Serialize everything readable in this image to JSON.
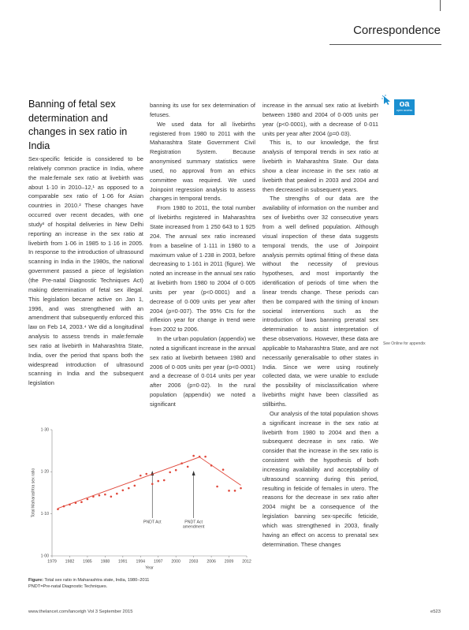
{
  "header": {
    "section": "Correspondence"
  },
  "article": {
    "title": "Banning of fetal sex determination and changes in sex ratio in India",
    "columns": [
      [
        "Sex-specific feticide is considered to be relatively common practice in India, where the male:female sex ratio at livebirth was about 1·10 in 2010–12,¹ as opposed to a comparable sex ratio of 1·06 for Asian countries in 2010.² These changes have occurred over recent decades, with one study³ of hospital deliveries in New Delhi reporting an increase in the sex ratio at livebirth from 1·06 in 1985 to 1·16 in 2005. In response to the introduction of ultrasound scanning in India in the 1980s, the national government passed a piece of legislation (the Pre-natal Diagnostic Techniques Act) making determination of fetal sex illegal. This legislation became active on Jan 1, 1996, and was strengthened with an amendment that subsequently enforced this law on Feb 14, 2003.⁴ We did a longitudinal analysis to assess trends in male:female sex ratio at livebirth in Maharashtra State, India, over the period that spans both the widespread introduction of ultrasound scanning in India and the subsequent legislation"
      ],
      [
        "banning its use for sex determination of fetuses.",
        "We used data for all livebirths registered from 1980 to 2011 with the Maharashtra State Government Civil Registration System. Because anonymised summary statistics were used, no approval from an ethics committee was required. We used Joinpoint regression analysis to assess changes in temporal trends.",
        "From 1980 to 2011, the total number of livebirths registered in Maharashtra State increased from 1 250 643 to 1 925 204. The annual sex ratio increased from a baseline of 1·111 in 1980 to a maximum value of 1·238 in 2003, before decreasing to 1·161 in 2011 (figure). We noted an increase in the annual sex ratio at livebirth from 1980 to 2004 of 0·005 units per year (p<0·0001) and a decrease of 0·009 units per year after 2004 (p=0·007). The 95% CIs for the inflexion year for change in trend were from 2002 to 2006.",
        "In the urban population (appendix) we noted a significant increase in the annual sex ratio at livebirth between 1980 and 2006 of 0·005 units per year (p<0·0001) and a decrease of 0·014 units per year after 2006 (p=0·02). In the rural population (appendix) we noted a significant"
      ],
      [
        "increase in the annual sex ratio at livebirth between 1980 and 2004 of 0·005 units per year (p<0·0001), with a decrease of 0·011 units per year after 2004 (p=0·03).",
        "This is, to our knowledge, the first analysis of temporal trends in sex ratio at livebirth in Maharashtra State. Our data show a clear increase in the sex ratio at livebirth that peaked in 2003 and 2004 and then decreased in subsequent years.",
        "The strengths of our data are the availability of information on the number and sex of livebirths over 32 consecutive years from a well defined population. Although visual inspection of these data suggests temporal trends, the use of Joinpoint analysis permits optimal fitting of these data without the necessity of previous hypotheses, and most importantly the identification of periods of time when the linear trends change. These periods can then be compared with the timing of known societal interventions such as the introduction of laws banning prenatal sex determination to assist interpretation of these observations. However, these data are applicable to Maharashtra State, and are not necessarily generalisable to other states in India. Since we were using routinely collected data, we were unable to exclude the possibility of misclassification where livebirths might have been classified as stillbirths.",
        "Our analysis of the total population shows a significant increase in the sex ratio at livebirth from 1980 to 2004 and then a subsequent decrease in sex ratio. We consider that the increase in the sex ratio is consistent with the hypothesis of both increasing availability and acceptability of ultrasound scanning during this period, resulting in feticide of females in utero. The reasons for the decrease in sex ratio after 2004 might be a consequence of the legislation banning sex-specific feticide, which was strengthened in 2003, finally having an effect on access to prenatal sex determination. These changes"
      ]
    ]
  },
  "sidebar": {
    "badge": "oa",
    "badge_sub": "open access",
    "note": "See Online for appendix"
  },
  "chart_data": {
    "type": "scatter",
    "ylabel": "Total Maharashtra sex ratio",
    "xlabel": "Year",
    "x": [
      1980,
      1981,
      1982,
      1983,
      1984,
      1985,
      1986,
      1987,
      1988,
      1989,
      1990,
      1991,
      1992,
      1993,
      1994,
      1995,
      1996,
      1997,
      1998,
      1999,
      2000,
      2001,
      2002,
      2003,
      2004,
      2005,
      2006,
      2007,
      2008,
      2009,
      2010,
      2011
    ],
    "values": [
      1.111,
      1.118,
      1.122,
      1.126,
      1.128,
      1.135,
      1.141,
      1.144,
      1.146,
      1.141,
      1.148,
      1.156,
      1.161,
      1.167,
      1.191,
      1.195,
      1.171,
      1.178,
      1.18,
      1.199,
      1.204,
      1.22,
      1.212,
      1.238,
      1.236,
      1.236,
      1.215,
      1.165,
      1.205,
      1.155,
      1.155,
      1.161
    ],
    "color": "#e0483b",
    "trend": {
      "x": [
        1980,
        2004,
        2011
      ],
      "values": [
        1.113,
        1.235,
        1.168
      ],
      "color": "#e0483b"
    },
    "xlim": [
      1979,
      2012
    ],
    "ylim": [
      1.0,
      1.3
    ],
    "xticks": [
      1979,
      1982,
      1985,
      1988,
      1991,
      1994,
      1997,
      2000,
      2003,
      2006,
      2009,
      2012
    ],
    "yticks": [
      {
        "value": 1.0,
        "label": "1·00"
      },
      {
        "value": 1.1,
        "label": "1·10"
      },
      {
        "value": 1.2,
        "label": "1·20"
      },
      {
        "value": 1.3,
        "label": "1·30"
      }
    ],
    "annotations": [
      {
        "lines": [
          "PNDT Act"
        ],
        "x": 1996
      },
      {
        "lines": [
          "PNDT Act",
          "amendment"
        ],
        "x": 2003
      }
    ],
    "caption": {
      "label": "Figure:",
      "text": "Total sex ratio in Maharashtra state, India, 1980–2011"
    },
    "note": "PNDT=Pre-natal Diagnostic Techniques."
  },
  "footer": {
    "left": "www.thelancet.com/lancetgh Vol 3 September 2015",
    "right": "e523"
  }
}
